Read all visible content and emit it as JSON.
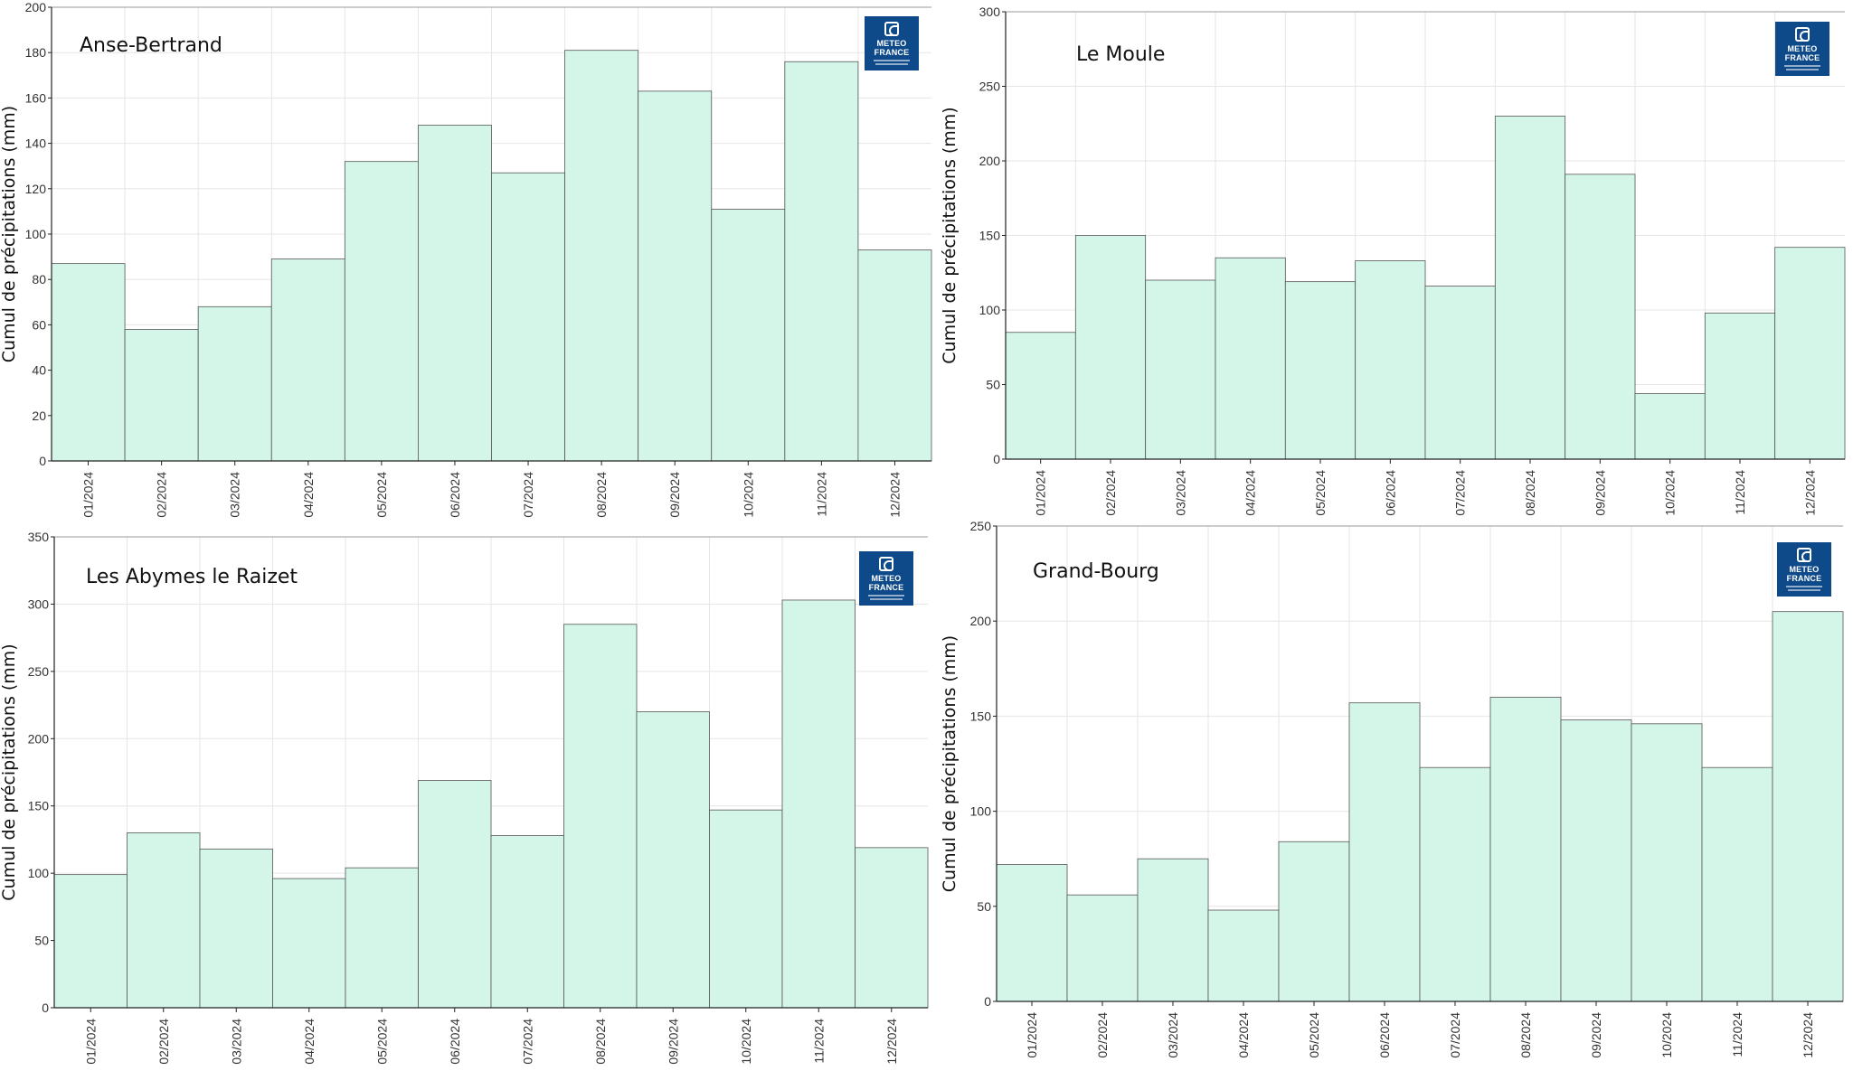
{
  "logo": {
    "line1": "METEO",
    "line2": "FRANCE"
  },
  "style": {
    "bar_fill": "#d3f6e8",
    "bar_stroke": "#555555",
    "grid": "#e6e6e6",
    "axis": "#222222"
  },
  "charts": [
    {
      "station": "Anse-Bertrand",
      "ylabel": "Cumul de précipitations (mm)",
      "ylim": [
        0,
        200
      ],
      "yticks": [
        0,
        20,
        40,
        60,
        80,
        100,
        120,
        140,
        160,
        180,
        200
      ]
    },
    {
      "station": "Le Moule",
      "ylabel": "Cumul de précipitations (mm)",
      "ylim": [
        0,
        300
      ],
      "yticks": [
        0,
        50,
        100,
        150,
        200,
        250,
        300
      ]
    },
    {
      "station": "Les Abymes le Raizet",
      "ylabel": "Cumul de précipitations (mm)",
      "ylim": [
        0,
        350
      ],
      "yticks": [
        0,
        50,
        100,
        150,
        200,
        250,
        300,
        350
      ]
    },
    {
      "station": "Grand-Bourg",
      "ylabel": "Cumul de précipitations (mm)",
      "ylim": [
        0,
        250
      ],
      "yticks": [
        0,
        50,
        100,
        150,
        200,
        250
      ]
    }
  ],
  "chart_data": [
    {
      "type": "bar",
      "title": "Anse-Bertrand",
      "ylabel": "Cumul de précipitations (mm)",
      "ylim": [
        0,
        200
      ],
      "grid": true,
      "categories": [
        "01/2024",
        "02/2024",
        "03/2024",
        "04/2024",
        "05/2024",
        "06/2024",
        "07/2024",
        "08/2024",
        "09/2024",
        "10/2024",
        "11/2024",
        "12/2024"
      ],
      "values": [
        87,
        58,
        68,
        89,
        132,
        148,
        127,
        181,
        163,
        111,
        176,
        93
      ]
    },
    {
      "type": "bar",
      "title": "Le Moule",
      "ylabel": "Cumul de précipitations (mm)",
      "ylim": [
        0,
        300
      ],
      "grid": true,
      "categories": [
        "01/2024",
        "02/2024",
        "03/2024",
        "04/2024",
        "05/2024",
        "06/2024",
        "07/2024",
        "08/2024",
        "09/2024",
        "10/2024",
        "11/2024",
        "12/2024"
      ],
      "values": [
        85,
        150,
        120,
        135,
        119,
        133,
        116,
        230,
        191,
        44,
        98,
        142
      ]
    },
    {
      "type": "bar",
      "title": "Les Abymes le Raizet",
      "ylabel": "Cumul de précipitations (mm)",
      "ylim": [
        0,
        350
      ],
      "grid": true,
      "categories": [
        "01/2024",
        "02/2024",
        "03/2024",
        "04/2024",
        "05/2024",
        "06/2024",
        "07/2024",
        "08/2024",
        "09/2024",
        "10/2024",
        "11/2024",
        "12/2024"
      ],
      "values": [
        99,
        130,
        118,
        96,
        104,
        169,
        128,
        285,
        220,
        147,
        303,
        119
      ]
    },
    {
      "type": "bar",
      "title": "Grand-Bourg",
      "ylabel": "Cumul de précipitations (mm)",
      "ylim": [
        0,
        250
      ],
      "grid": true,
      "categories": [
        "01/2024",
        "02/2024",
        "03/2024",
        "04/2024",
        "05/2024",
        "06/2024",
        "07/2024",
        "08/2024",
        "09/2024",
        "10/2024",
        "11/2024",
        "12/2024"
      ],
      "values": [
        72,
        56,
        75,
        48,
        84,
        157,
        123,
        160,
        148,
        146,
        123,
        205
      ]
    }
  ]
}
